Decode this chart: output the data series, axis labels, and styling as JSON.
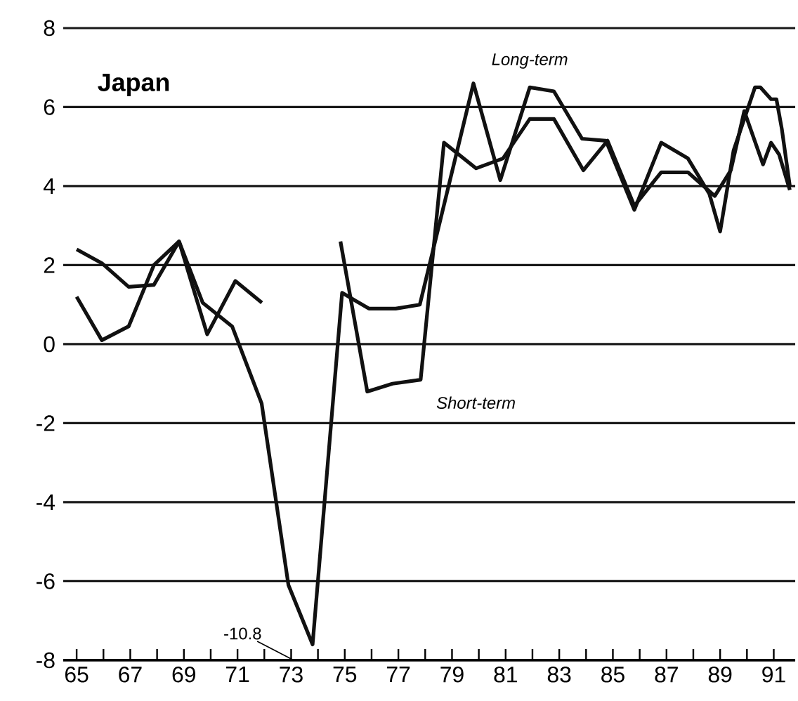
{
  "chart_data": {
    "type": "line",
    "title": "Japan",
    "series": [
      {
        "name": "Short-term",
        "color": "#111111",
        "x": [
          1965,
          1965.94,
          1966.94,
          1967.88,
          1968.82,
          1969.87,
          1970.92,
          1971.91,
          1973.7,
          1974.84,
          1975.84,
          1976.78,
          1977.83,
          1978.7,
          1979.9,
          1980.9,
          1981.9,
          1982.8,
          1983.9,
          1984.8,
          1985.8,
          1986.8,
          1987.8,
          1988.8,
          1989.4,
          1989.9,
          1990.6,
          1990.9,
          1991.2,
          1991.6
        ],
        "values": [
          2.4,
          2.05,
          1.45,
          1.5,
          2.6,
          0.25,
          1.6,
          1.05,
          null,
          2.6,
          -1.2,
          -1.0,
          -0.9,
          5.1,
          4.45,
          4.7,
          5.7,
          5.7,
          4.4,
          5.15,
          3.5,
          4.35,
          4.35,
          3.75,
          4.4,
          5.9,
          4.55,
          5.1,
          4.8,
          3.9
        ]
      },
      {
        "name": "Long-term",
        "color": "#111111",
        "x": [
          1965,
          1965.94,
          1966.94,
          1967.88,
          1968.82,
          1969.7,
          1970.8,
          1971.9,
          1972.9,
          1973.8,
          1974.9,
          1975.9,
          1976.9,
          1977.8,
          1979.8,
          1980.8,
          1981.9,
          1982.8,
          1983.85,
          1984.74,
          1985.8,
          1986.8,
          1987.8,
          1988.6,
          1989.0,
          1989.5,
          1990.3,
          1990.5,
          1990.9,
          1991.1,
          1991.3,
          1991.6
        ],
        "values": [
          1.2,
          0.1,
          0.45,
          2.0,
          2.6,
          1.05,
          0.45,
          -1.5,
          -6.1,
          -7.6,
          1.3,
          0.9,
          0.9,
          1.0,
          6.6,
          4.15,
          6.5,
          6.4,
          5.2,
          5.15,
          3.4,
          5.1,
          4.7,
          3.8,
          2.85,
          4.9,
          6.5,
          6.5,
          6.2,
          6.2,
          5.45,
          4.0
        ]
      }
    ],
    "xlim": [
      1964.5,
      1991.8
    ],
    "xticks": [
      {
        "value": 1965,
        "label": "65"
      },
      {
        "value": 1966,
        "label": null
      },
      {
        "value": 1967,
        "label": "67"
      },
      {
        "value": 1968,
        "label": null
      },
      {
        "value": 1969,
        "label": "69"
      },
      {
        "value": 1970,
        "label": null
      },
      {
        "value": 1971,
        "label": "71"
      },
      {
        "value": 1972,
        "label": null
      },
      {
        "value": 1973,
        "label": "73"
      },
      {
        "value": 1974,
        "label": null
      },
      {
        "value": 1975,
        "label": "75"
      },
      {
        "value": 1976,
        "label": null
      },
      {
        "value": 1977,
        "label": "77"
      },
      {
        "value": 1978,
        "label": null
      },
      {
        "value": 1979,
        "label": "79"
      },
      {
        "value": 1980,
        "label": null
      },
      {
        "value": 1981,
        "label": "81"
      },
      {
        "value": 1982,
        "label": null
      },
      {
        "value": 1983,
        "label": "83"
      },
      {
        "value": 1984,
        "label": null
      },
      {
        "value": 1985,
        "label": "85"
      },
      {
        "value": 1986,
        "label": null
      },
      {
        "value": 1987,
        "label": "87"
      },
      {
        "value": 1988,
        "label": null
      },
      {
        "value": 1989,
        "label": "89"
      },
      {
        "value": 1990,
        "label": null
      },
      {
        "value": 1991,
        "label": "91"
      }
    ],
    "ylim": [
      -8,
      8
    ],
    "yticks": [
      -8,
      -6,
      -4,
      -2,
      0,
      2,
      4,
      6,
      8
    ],
    "grid": "y",
    "annotations": [
      "-10.8"
    ]
  }
}
